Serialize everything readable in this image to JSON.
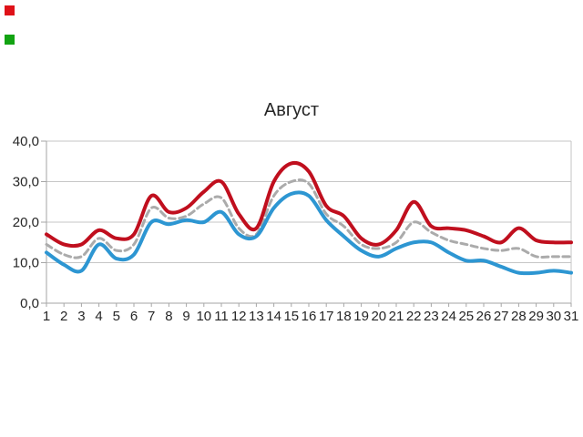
{
  "markers": {
    "red_square_color": "#df1118",
    "green_square_color": "#12a312"
  },
  "colors": {
    "gridline": "#c6c6c6",
    "axis": "#a6a6a6",
    "text": "#262626"
  },
  "chart_data": {
    "type": "line",
    "title": "Август",
    "xlabel": "",
    "ylabel": "",
    "ylim": [
      0,
      40
    ],
    "grid": true,
    "legend": false,
    "x_labels": [
      "1",
      "2",
      "3",
      "4",
      "5",
      "6",
      "7",
      "8",
      "9",
      "10",
      "11",
      "12",
      "13",
      "14",
      "15",
      "16",
      "17",
      "18",
      "19",
      "20",
      "21",
      "22",
      "23",
      "24",
      "25",
      "26",
      "27",
      "28",
      "29",
      "30",
      "31"
    ],
    "y_ticks": [
      {
        "label": "0,0",
        "value": 0
      },
      {
        "label": "10,0",
        "value": 10
      },
      {
        "label": "20,0",
        "value": 20
      },
      {
        "label": "30,0",
        "value": 30
      },
      {
        "label": "40,0",
        "value": 40
      }
    ],
    "series": [
      {
        "name": "red-solid-line",
        "color": "#c00f1e",
        "style": "solid",
        "width": 4,
        "values": [
          17,
          14.5,
          14.5,
          18,
          16,
          17,
          26.5,
          22.5,
          23.5,
          27.5,
          30,
          22,
          18.5,
          30,
          34.5,
          32.5,
          24,
          21.5,
          16,
          14.5,
          18,
          25,
          19,
          18.5,
          18,
          16.5,
          15,
          18.5,
          15.5,
          15,
          15
        ]
      },
      {
        "name": "gray-dashed-line",
        "color": "#ababab",
        "style": "dashed",
        "width": 3,
        "values": [
          14.5,
          12,
          11.5,
          16,
          13,
          14.5,
          23.5,
          21,
          21.5,
          24.5,
          26,
          18.5,
          17,
          26.5,
          30,
          29.5,
          22,
          19,
          14.5,
          13.5,
          15,
          20,
          17.5,
          15.5,
          14.5,
          13.5,
          13,
          13.5,
          11.5,
          11.5,
          11.5
        ]
      },
      {
        "name": "blue-solid-line",
        "color": "#2d96d2",
        "style": "solid",
        "width": 4,
        "values": [
          12.5,
          9.5,
          8,
          14.5,
          11,
          12,
          20,
          19.5,
          20.5,
          20,
          22.5,
          17,
          16.5,
          23.5,
          27,
          26.5,
          20.5,
          16.5,
          13,
          11.5,
          13.5,
          15,
          15,
          12.5,
          10.5,
          10.5,
          9,
          7.5,
          7.5,
          8,
          7.5
        ]
      }
    ]
  }
}
